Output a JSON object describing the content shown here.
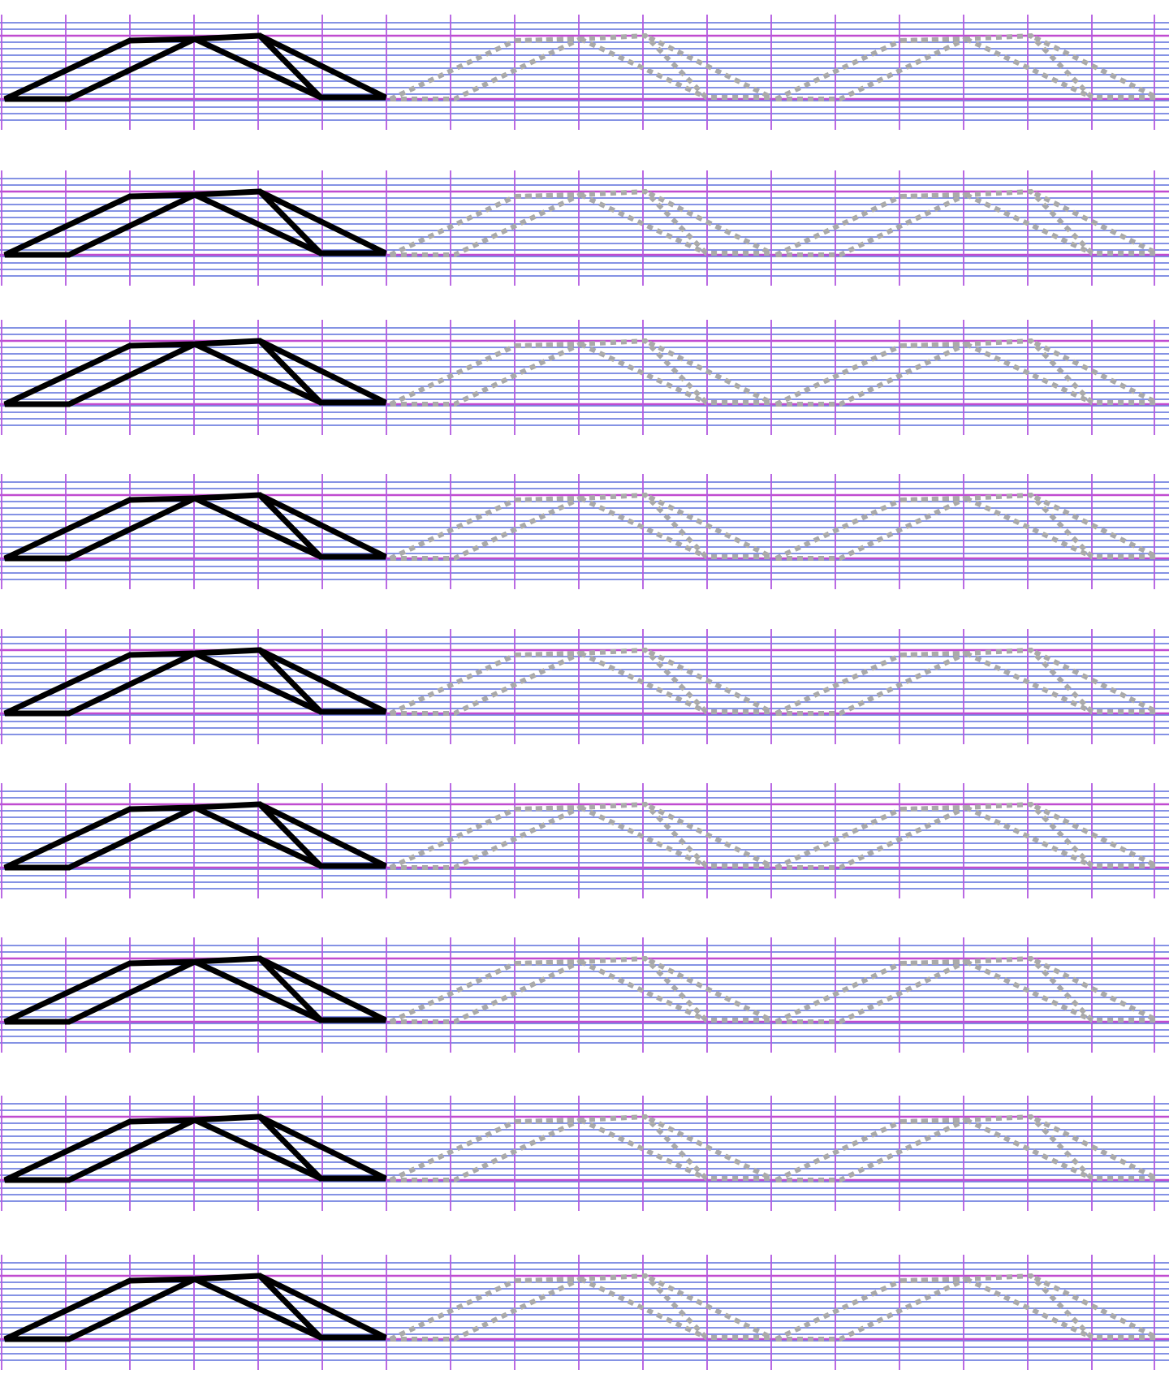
{
  "worksheet": {
    "kind": "handwriting tracing practice sheet",
    "rows": 9,
    "model_shape": "double-line mountain / hump zigzag",
    "traced_repeats_per_row": 2,
    "colors": {
      "paper": "#ffffff",
      "thin_rule": "#5b6fdc",
      "main_rule": "#c04bd0",
      "vertical_rule": "#b35ae0",
      "model_stroke": "#000000",
      "trace_stroke": "#aaaaaa"
    }
  }
}
